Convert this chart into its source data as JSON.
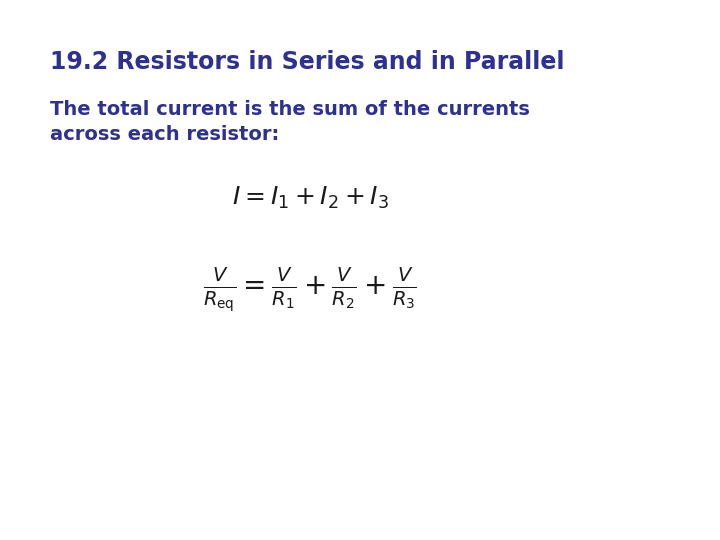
{
  "title": "19.2 Resistors in Series and in Parallel",
  "body_text_line1": "The total current is the sum of the currents",
  "body_text_line2": "across each resistor:",
  "eq1": "$I = I_1 + I_2 + I_3$",
  "eq2": "$\\frac{V}{R_{\\rm eq}} = \\frac{V}{R_1} + \\frac{V}{R_2} + \\frac{V}{R_3}$",
  "title_color": "#2E3192",
  "body_color": "#2E3192",
  "eq_color": "#1a1a1a",
  "background_color": "#ffffff",
  "title_fontsize": 17,
  "body_fontsize": 14,
  "eq1_fontsize": 18,
  "eq2_fontsize": 20
}
